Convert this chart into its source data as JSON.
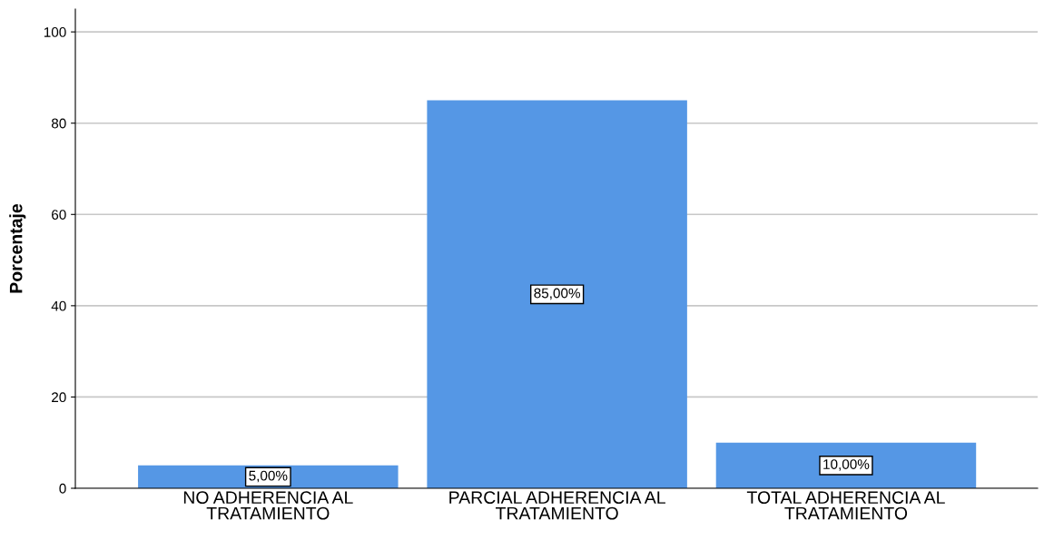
{
  "chart_data": {
    "type": "bar",
    "ylabel": "Porcentaje",
    "categories": [
      "NO ADHERENCIA AL\nTRATAMIENTO",
      "PARCIAL ADHERENCIA AL\nTRATAMIENTO",
      "TOTAL ADHERENCIA AL\nTRATAMIENTO"
    ],
    "values": [
      5,
      85,
      10
    ],
    "value_labels": [
      "5,00%",
      "85,00%",
      "10,00%"
    ],
    "color": "#5597e5",
    "ylim": [
      0,
      105
    ],
    "yticks": [
      0,
      20,
      40,
      60,
      80,
      100
    ],
    "grid": "y",
    "legend": false
  }
}
